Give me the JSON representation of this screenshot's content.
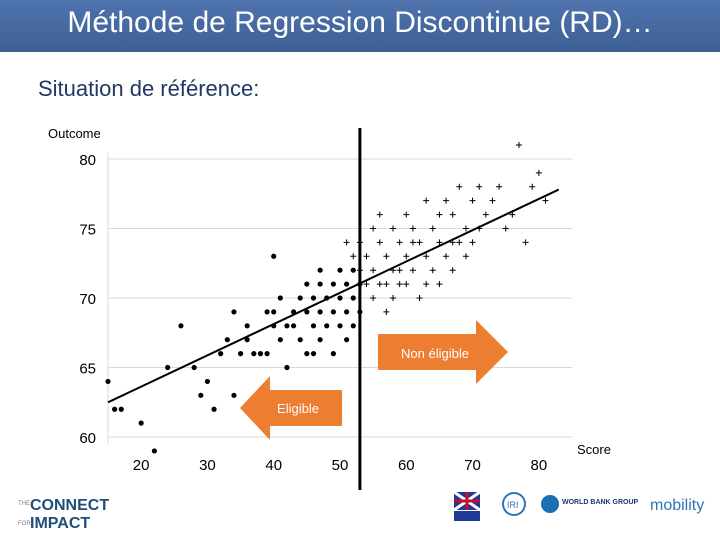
{
  "slide": {
    "title": "Méthode de Regression Discontinue (RD)…",
    "subtitle": "Situation de référence:"
  },
  "chart_data": {
    "type": "scatter",
    "title": "",
    "xlabel": "Score",
    "ylabel": "Outcome",
    "xlim": [
      15,
      85
    ],
    "ylim": [
      59.5,
      80.5
    ],
    "xticks": [
      20,
      30,
      40,
      50,
      60,
      70,
      80
    ],
    "yticks": [
      60,
      65,
      70,
      75,
      80
    ],
    "cutoff": 53,
    "fit_line": {
      "x": [
        15,
        83
      ],
      "y": [
        62.5,
        77.8
      ]
    },
    "series": [
      {
        "marker": "dot",
        "points": [
          [
            15,
            64
          ],
          [
            16,
            62
          ],
          [
            17,
            62
          ],
          [
            20,
            61
          ],
          [
            22,
            59
          ],
          [
            24,
            65
          ],
          [
            26,
            68
          ],
          [
            28,
            65
          ],
          [
            29,
            63
          ],
          [
            30,
            64
          ],
          [
            31,
            62
          ],
          [
            32,
            66
          ],
          [
            33,
            67
          ],
          [
            34,
            63
          ],
          [
            35,
            66
          ],
          [
            36,
            67
          ],
          [
            37,
            66
          ],
          [
            38,
            66
          ],
          [
            38,
            62
          ],
          [
            39,
            69
          ],
          [
            39,
            66
          ],
          [
            40,
            73
          ],
          [
            40,
            69
          ],
          [
            40,
            68
          ],
          [
            41,
            67
          ],
          [
            42,
            65
          ],
          [
            42,
            68
          ],
          [
            43,
            69
          ],
          [
            44,
            70
          ],
          [
            44,
            67
          ],
          [
            45,
            71
          ],
          [
            45,
            69
          ],
          [
            45,
            66
          ],
          [
            46,
            70
          ],
          [
            46,
            68
          ],
          [
            47,
            72
          ],
          [
            47,
            71
          ],
          [
            47,
            69
          ],
          [
            47,
            67
          ],
          [
            48,
            70
          ],
          [
            48,
            68
          ],
          [
            49,
            71
          ],
          [
            49,
            69
          ],
          [
            49,
            66
          ],
          [
            50,
            72
          ],
          [
            50,
            70
          ],
          [
            50,
            68
          ],
          [
            51,
            71
          ],
          [
            51,
            69
          ],
          [
            51,
            67
          ],
          [
            52,
            72
          ],
          [
            52,
            70
          ],
          [
            52,
            68
          ],
          [
            53,
            71
          ],
          [
            53,
            69
          ],
          [
            34,
            69
          ],
          [
            36,
            68
          ],
          [
            41,
            70
          ],
          [
            43,
            68
          ],
          [
            46,
            66
          ]
        ]
      },
      {
        "marker": "plus",
        "points": [
          [
            51,
            74
          ],
          [
            52,
            73
          ],
          [
            53,
            72
          ],
          [
            53,
            74
          ],
          [
            54,
            73
          ],
          [
            54,
            71
          ],
          [
            55,
            75
          ],
          [
            55,
            72
          ],
          [
            55,
            70
          ],
          [
            56,
            74
          ],
          [
            56,
            71
          ],
          [
            57,
            73
          ],
          [
            57,
            69
          ],
          [
            58,
            75
          ],
          [
            58,
            72
          ],
          [
            58,
            70
          ],
          [
            59,
            74
          ],
          [
            59,
            71
          ],
          [
            60,
            76
          ],
          [
            60,
            73
          ],
          [
            60,
            71
          ],
          [
            61,
            75
          ],
          [
            61,
            72
          ],
          [
            62,
            74
          ],
          [
            62,
            70
          ],
          [
            63,
            77
          ],
          [
            63,
            73
          ],
          [
            64,
            75
          ],
          [
            64,
            72
          ],
          [
            65,
            74
          ],
          [
            65,
            71
          ],
          [
            66,
            77
          ],
          [
            66,
            73
          ],
          [
            67,
            76
          ],
          [
            67,
            72
          ],
          [
            68,
            78
          ],
          [
            68,
            74
          ],
          [
            69,
            75
          ],
          [
            69,
            73
          ],
          [
            70,
            77
          ],
          [
            70,
            74
          ],
          [
            71,
            78
          ],
          [
            71,
            75
          ],
          [
            72,
            76
          ],
          [
            73,
            77
          ],
          [
            74,
            78
          ],
          [
            75,
            75
          ],
          [
            76,
            76
          ],
          [
            77,
            81
          ],
          [
            78,
            74
          ],
          [
            79,
            78
          ],
          [
            80,
            79
          ],
          [
            81,
            77
          ],
          [
            56,
            76
          ],
          [
            57,
            71
          ],
          [
            59,
            72
          ],
          [
            61,
            74
          ],
          [
            63,
            71
          ],
          [
            65,
            76
          ],
          [
            67,
            74
          ]
        ]
      }
    ]
  },
  "callouts": {
    "right_arrow_label": "Non éligible",
    "left_arrow_label": "Eligible",
    "right_arrow_color": "#ed7d31",
    "left_arrow_color": "#ed7d31"
  },
  "footer": {
    "left_logo": "THE CONNECT FOR IMPACT",
    "right_logos": [
      "UKaid",
      "IRI",
      "WORLD BANK GROUP",
      "mobility"
    ]
  },
  "colors": {
    "title_bar": "#4472c4",
    "subtitle": "#1f3864",
    "points": "#000000",
    "gridlines": "#d9d9d9"
  }
}
